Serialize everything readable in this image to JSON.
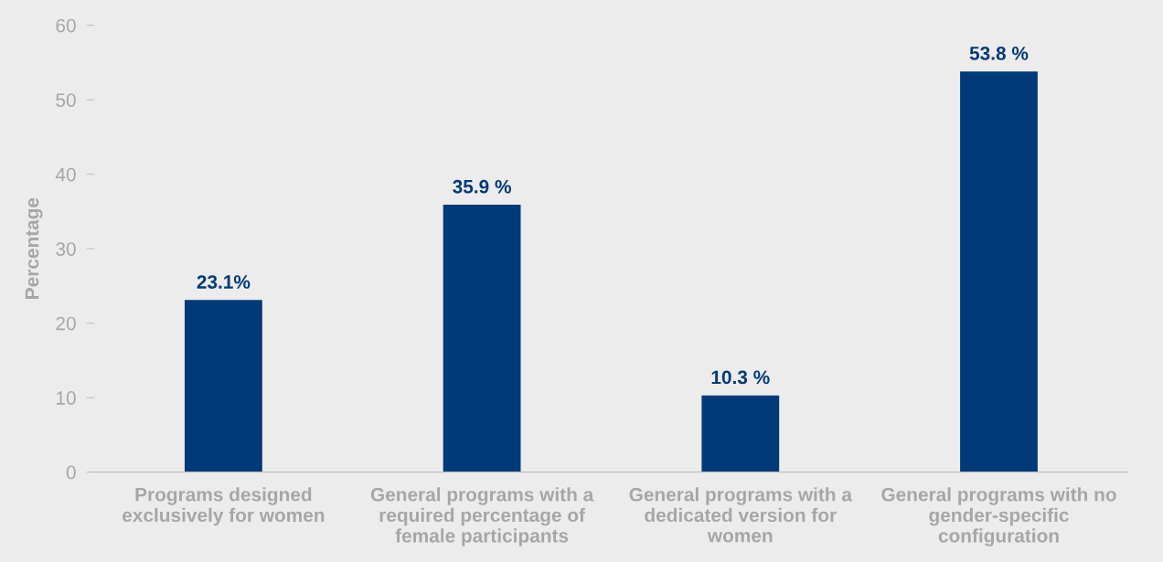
{
  "chart_data": {
    "type": "bar",
    "ylabel": "Percentage",
    "categories": [
      "Programs designed\nexclusively for women",
      "General programs with a\nrequired percentage of\nfemale participants",
      "General programs with a\ndedicated version for\nwomen",
      "General programs with no\ngender-specific\nconfiguration"
    ],
    "values": [
      23.1,
      35.9,
      10.3,
      53.8
    ],
    "value_labels": [
      "23.1%",
      "35.9 %",
      "10.3 %",
      "53.8 %"
    ],
    "color": "#003a78",
    "ylim": [
      0,
      60
    ],
    "yticks": [
      0,
      10,
      20,
      30,
      40,
      50,
      60
    ],
    "grid": false,
    "legend": false
  }
}
